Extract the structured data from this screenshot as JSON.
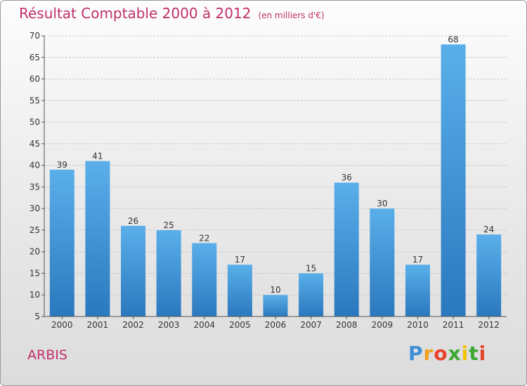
{
  "title": "Résultat Comptable 2000 à 2012",
  "subtitle": "(en milliers d'€)",
  "town": "ARBIS",
  "logo": {
    "letters": [
      "P",
      "r",
      "o",
      "x",
      "i",
      "t",
      "i"
    ],
    "colors": [
      "#3f8fd6",
      "#f0a020",
      "#e8442c",
      "#3aa832",
      "#f2c200",
      "#3aa832",
      "#e8442c"
    ]
  },
  "colors": {
    "accent": "#c0306a",
    "bar_top": "#5aafea",
    "bar_bottom": "#2a78be"
  },
  "chart_data": {
    "type": "bar",
    "title": "Résultat Comptable 2000 à 2012",
    "subtitle": "(en milliers d'€)",
    "categories": [
      "2000",
      "2001",
      "2002",
      "2003",
      "2004",
      "2005",
      "2006",
      "2007",
      "2008",
      "2009",
      "2010",
      "2011",
      "2012"
    ],
    "values": [
      39,
      41,
      26,
      25,
      22,
      17,
      10,
      15,
      36,
      30,
      17,
      68,
      24
    ],
    "ylim": [
      5,
      70
    ],
    "yticks": [
      5,
      10,
      15,
      20,
      25,
      30,
      35,
      40,
      45,
      50,
      55,
      60,
      65,
      70
    ],
    "grid": true,
    "legend": "none"
  }
}
